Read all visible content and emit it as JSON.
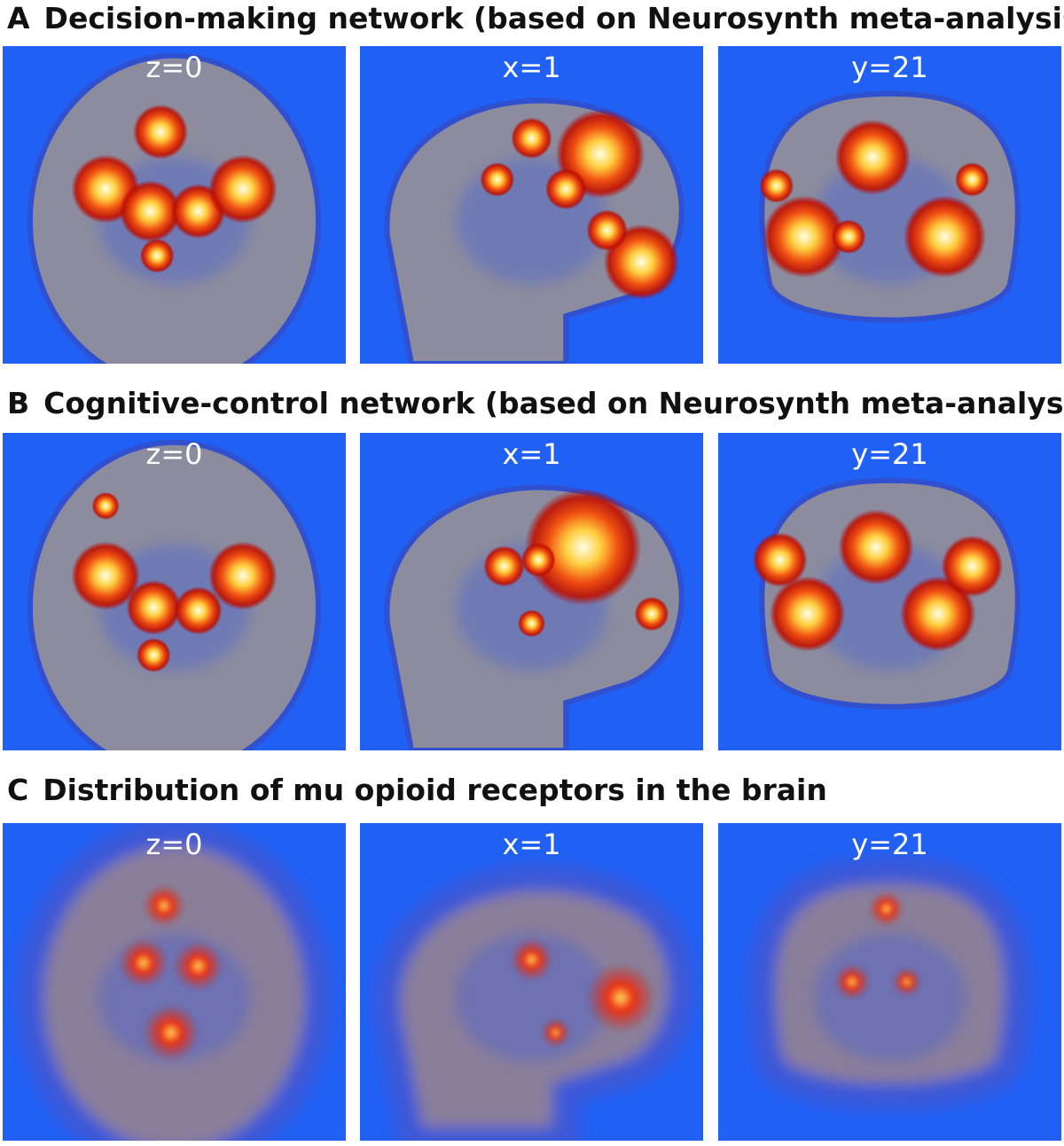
{
  "panels": [
    {
      "letter": "A",
      "title": "Decision-making network (based on Neurosynth meta-analysis)",
      "views": [
        "z=0",
        "x=1",
        "y=21"
      ]
    },
    {
      "letter": "B",
      "title": "Cognitive-control network (based on Neurosynth meta-analysis)",
      "views": [
        "z=0",
        "x=1",
        "y=21"
      ]
    },
    {
      "letter": "C",
      "title": "Distribution of mu opioid receptors in the brain",
      "views": [
        "z=0",
        "x=1",
        "y=21"
      ]
    }
  ]
}
